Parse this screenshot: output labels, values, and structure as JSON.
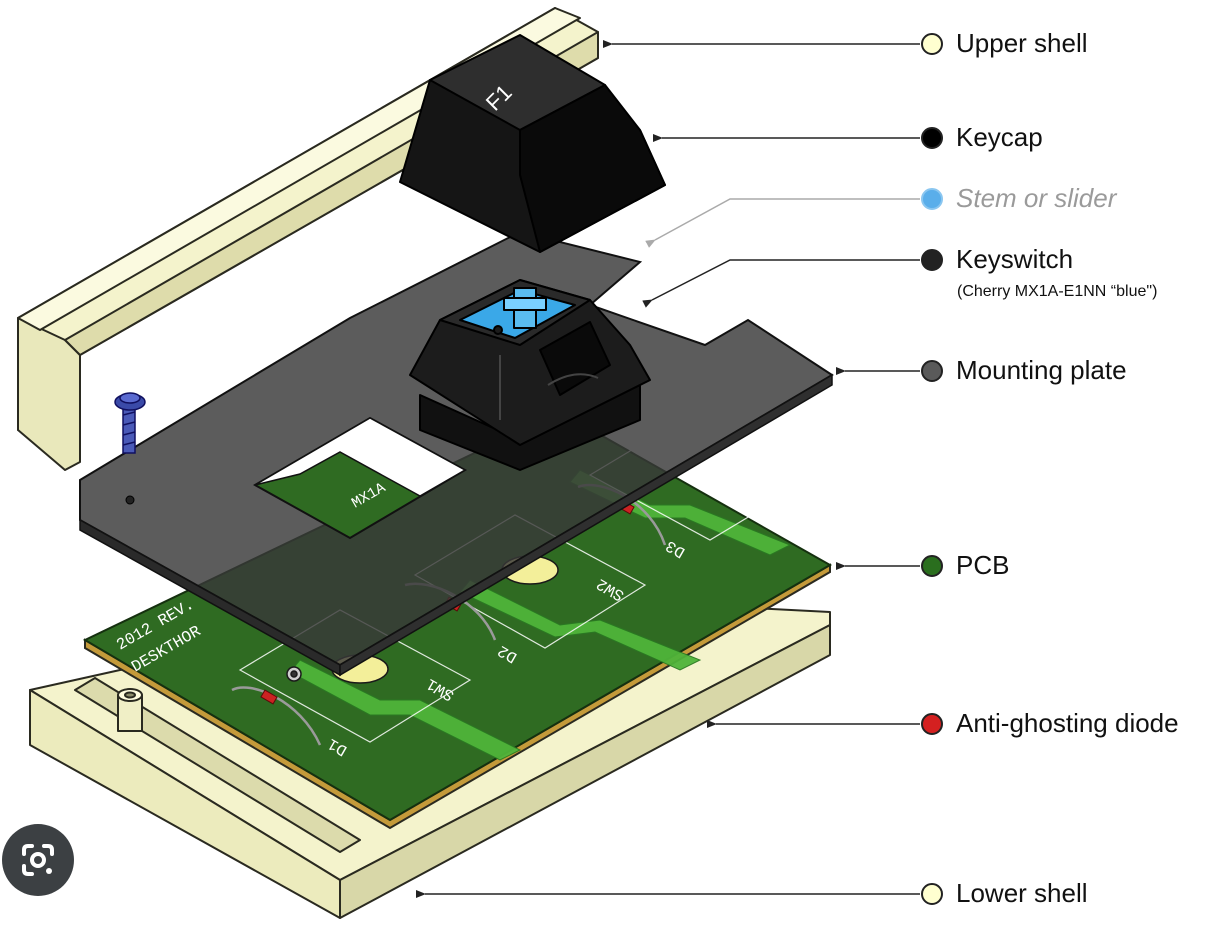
{
  "diagram": {
    "labels": {
      "upper_shell": "Upper shell",
      "keycap": "Keycap",
      "stem": "Stem or slider",
      "keyswitch": "Keyswitch",
      "keyswitch_note": "(Cherry MX1A-E1NN “blue\")",
      "mounting_plate": "Mounting plate",
      "pcb": "PCB",
      "diode": "Anti-ghosting diode",
      "lower_shell": "Lower shell"
    },
    "marker_colors": {
      "upper_shell": "#ffffd0",
      "keycap": "#000000",
      "stem": "#5aaeea",
      "keyswitch": "#222222",
      "mounting_plate": "#5a5a5a",
      "pcb": "#2a6e1e",
      "diode": "#d42020",
      "lower_shell": "#ffffd0"
    },
    "keycap_legend": "F1",
    "plate_marking": "MX1A",
    "pcb_text": {
      "line1": "2012 REV.",
      "line2": "DESKTHOR",
      "sw1": "SW1",
      "sw2": "SW2",
      "d1": "D1",
      "d2": "D2",
      "d3": "D3"
    }
  },
  "overlay": {
    "lens_icon": "google-lens-icon"
  }
}
